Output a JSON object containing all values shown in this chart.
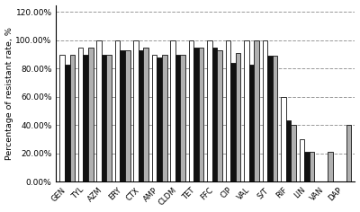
{
  "categories": [
    "GEN",
    "TYL",
    "AZM",
    "ERY",
    "CTX",
    "AMP",
    "CLDM",
    "TET",
    "FFC",
    "CIP",
    "VAL",
    "S/T",
    "RIF",
    "LIN",
    "VAN",
    "DAP"
  ],
  "white_bars": [
    90,
    95,
    100,
    100,
    100,
    90,
    100,
    100,
    100,
    100,
    100,
    100,
    60,
    30,
    0,
    0
  ],
  "black_bars": [
    83,
    90,
    90,
    93,
    93,
    88,
    90,
    95,
    95,
    84,
    83,
    89,
    43,
    21,
    0,
    0
  ],
  "gray_bars": [
    90,
    95,
    90,
    93,
    95,
    90,
    90,
    95,
    93,
    91,
    100,
    89,
    40,
    21,
    21,
    40
  ],
  "ylabel": "Percentage of resistant rate, %",
  "yticks": [
    0,
    20,
    40,
    60,
    80,
    100,
    120
  ],
  "yticklabels": [
    "0.00%",
    "20.00%",
    "40.00%",
    "60.00%",
    "80.00%",
    "100.00%",
    "120.00%"
  ],
  "ylim": [
    0,
    125
  ],
  "bar_width": 0.27,
  "white_color": "#ffffff",
  "black_color": "#111111",
  "gray_color": "#b0b0b0",
  "edge_color": "#111111",
  "background_color": "#ffffff",
  "grid_color": "#999999",
  "figsize": [
    4.0,
    2.36
  ],
  "dpi": 100
}
